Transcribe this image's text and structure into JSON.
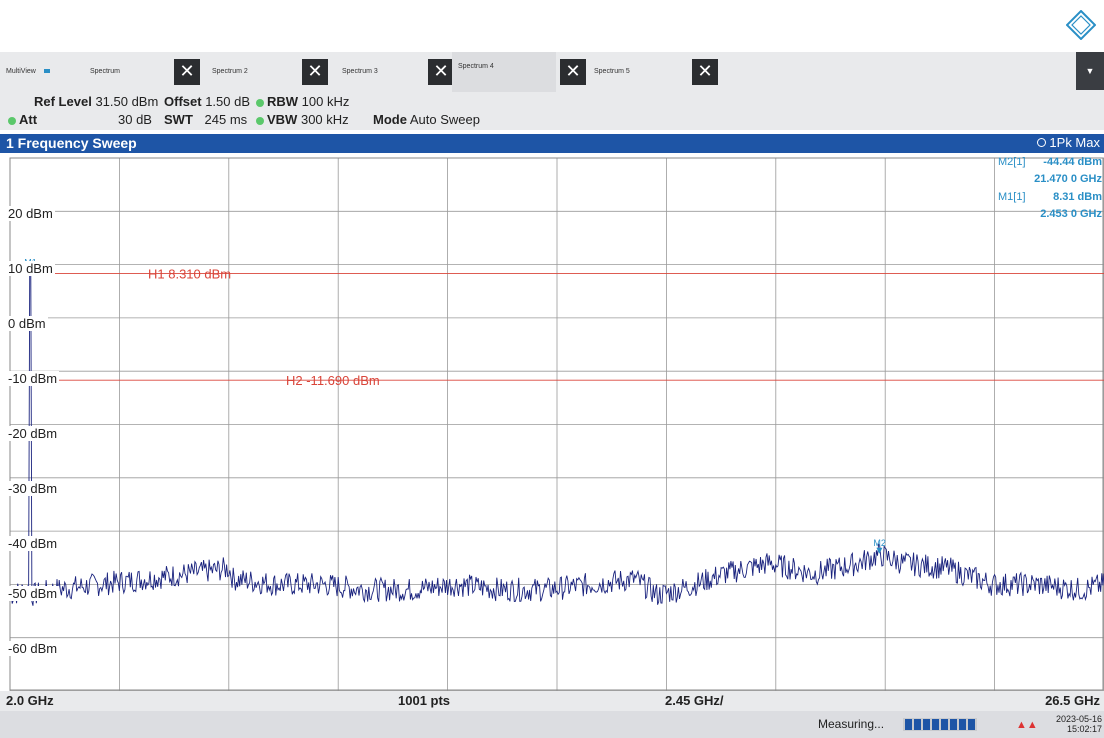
{
  "tabs": {
    "multiview": "MultiView",
    "items": [
      {
        "label": "Spectrum"
      },
      {
        "label": "Spectrum 2"
      },
      {
        "label": "Spectrum 3"
      },
      {
        "label": "Spectrum 4"
      },
      {
        "label": "Spectrum 5"
      }
    ],
    "active_index": 3
  },
  "params": {
    "ref_level_label": "Ref Level",
    "ref_level_value": "31.50 dBm",
    "offset_label": "Offset",
    "offset_value": "1.50 dB",
    "rbw_label": "RBW",
    "rbw_value": "100 kHz",
    "att_label": "Att",
    "att_value": "30 dB",
    "swt_label": "SWT",
    "swt_value": "245 ms",
    "vbw_label": "VBW",
    "vbw_value": "300 kHz",
    "mode_label": "Mode",
    "mode_value": "Auto Sweep"
  },
  "window": {
    "title": "1 Frequency Sweep",
    "trace_label": "1Pk Max"
  },
  "markers": {
    "m2_label": "M2[1]",
    "m2_level": "-44.44 dBm",
    "m2_freq": "21.470 0 GHz",
    "m1_label": "M1[1]",
    "m1_level": "8.31 dBm",
    "m1_freq": "2.453 0 GHz",
    "m1_tag": "M1",
    "m2_tag": "M2"
  },
  "lines": {
    "h1": "H1 8.310 dBm",
    "h2": "H2 -11.690 dBm"
  },
  "yaxis_labels": [
    "20 dBm",
    "10 dBm",
    "0 dBm",
    "-10 dBm",
    "-20 dBm",
    "-30 dBm",
    "-40 dBm",
    "-50 dBm",
    "-60 dBm"
  ],
  "footer": {
    "start": "2.0 GHz",
    "points": "1001 pts",
    "span_per_div": "2.45 GHz/",
    "stop": "26.5 GHz"
  },
  "status": {
    "measuring": "Measuring...",
    "date": "2023-05-16",
    "time": "15:02:17"
  },
  "colors": {
    "accent": "#1e55a6",
    "marker": "#2a8fc6",
    "limit_line": "#d9453a",
    "trace": "#1a237e"
  },
  "chart_data": {
    "type": "line",
    "title": "1 Frequency Sweep",
    "xlabel": "",
    "ylabel": "",
    "xlim": [
      2.0,
      26.5
    ],
    "x_unit": "GHz",
    "ylim": [
      -70,
      30
    ],
    "y_unit": "dBm",
    "grid": true,
    "series": [
      {
        "name": "1Pk Max",
        "x": [
          2.0,
          2.4,
          2.453,
          2.5,
          3.0,
          4.0,
          5.0,
          6.0,
          6.9,
          7.0,
          8.0,
          9.0,
          10.0,
          11.0,
          12.0,
          13.0,
          14.0,
          15.0,
          16.0,
          16.5,
          17.0,
          18.0,
          19.0,
          20.0,
          21.0,
          21.47,
          22.0,
          23.0,
          24.0,
          25.0,
          26.0,
          26.5
        ],
        "y": [
          -52,
          -51,
          8.31,
          -52,
          -51,
          -50,
          -49,
          -48,
          -47,
          -49,
          -50,
          -50,
          -51,
          -51,
          -50,
          -51,
          -51,
          -50,
          -49,
          -52,
          -51,
          -48,
          -46,
          -48,
          -46,
          -44.44,
          -46,
          -47,
          -50,
          -50,
          -51,
          -50
        ]
      }
    ],
    "reference_lines": [
      {
        "name": "H1",
        "y": 8.31
      },
      {
        "name": "H2",
        "y": -11.69
      }
    ]
  }
}
